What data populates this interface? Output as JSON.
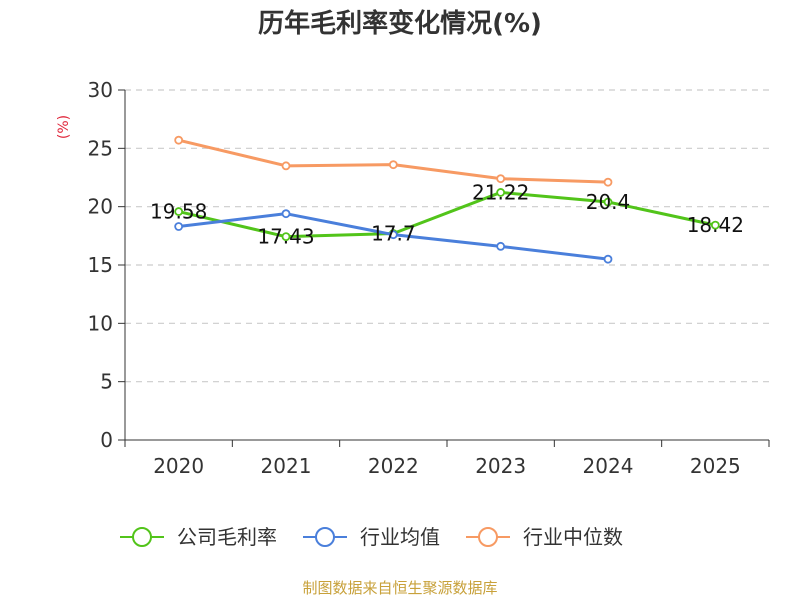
{
  "chart_data": {
    "type": "line",
    "title": "历年毛利率变化情况(%)",
    "ylabel": "(%)",
    "xlabel": "",
    "categories": [
      "2020",
      "2021",
      "2022",
      "2023",
      "2024",
      "2025"
    ],
    "ylim": [
      0,
      30
    ],
    "yticks": [
      0,
      5,
      10,
      15,
      20,
      25,
      30
    ],
    "grid": true,
    "legend_position": "bottom",
    "series": [
      {
        "name": "公司毛利率",
        "color": "#52c41a",
        "values": [
          19.58,
          17.43,
          17.7,
          21.22,
          20.4,
          18.42
        ],
        "labels": [
          "19.58",
          "17.43",
          "17.7",
          "21.22",
          "20.4",
          "18.42"
        ]
      },
      {
        "name": "行业均值",
        "color": "#4a7fdb",
        "values": [
          18.3,
          19.4,
          17.6,
          16.6,
          15.5,
          null
        ]
      },
      {
        "name": "行业中位数",
        "color": "#f79a63",
        "values": [
          25.7,
          23.5,
          23.6,
          22.4,
          22.1,
          null
        ]
      }
    ],
    "colors": {
      "axis": "#333333",
      "grid": "#cccccc",
      "ylabel": "#e0283c"
    }
  },
  "source_text": "制图数据来自恒生聚源数据库",
  "source_color": "#c8a13a"
}
